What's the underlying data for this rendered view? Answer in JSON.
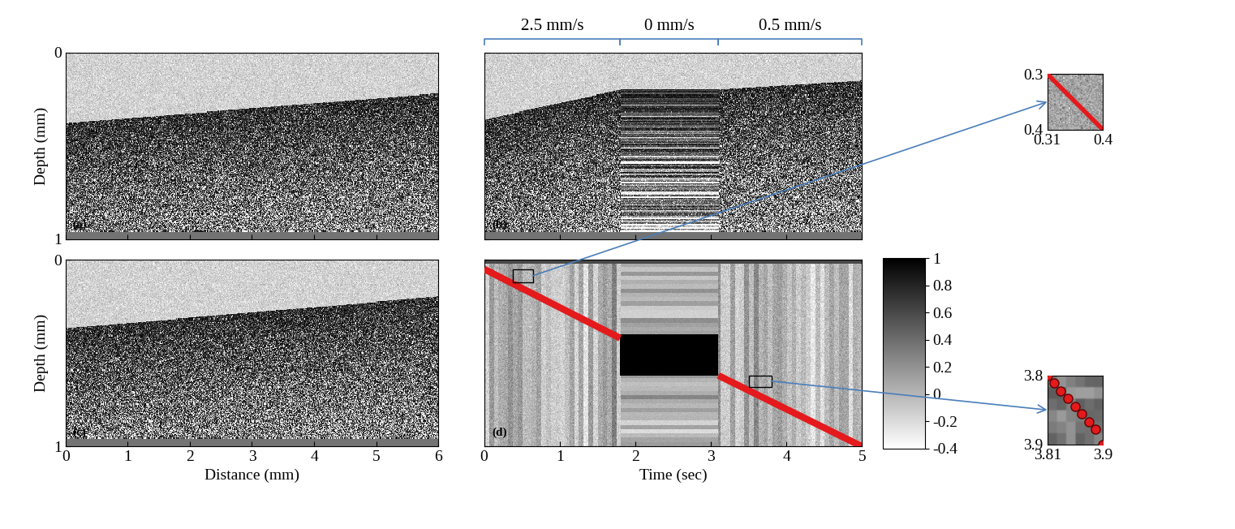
{
  "chart_data": [
    {
      "type": "image",
      "panel": "(a)",
      "ylabel": "Depth (mm)",
      "xlim": [
        0,
        6
      ],
      "ylim": [
        1,
        0
      ],
      "xticks": [
        0,
        1,
        2,
        3,
        4,
        5,
        6
      ],
      "yticks": [
        0,
        1
      ],
      "tick_labels": "y",
      "surface": {
        "x": [
          0,
          6
        ],
        "values": [
          0.38,
          0.22
        ]
      }
    },
    {
      "type": "image",
      "panel": "(b)",
      "xlim": [
        0,
        5
      ],
      "ylim": [
        1,
        0
      ],
      "xticks": [
        0,
        1,
        2,
        3,
        4,
        5
      ],
      "yticks": [
        0,
        1
      ],
      "tick_labels": false,
      "surface": {
        "x": [
          0,
          1.8,
          3.1,
          5
        ],
        "values": [
          0.36,
          0.2,
          0.2,
          0.15
        ]
      },
      "segments": [
        {
          "label": "2.5 mm/s",
          "x": [
            0,
            1.8
          ]
        },
        {
          "label": "0 mm/s",
          "x": [
            1.8,
            3.1
          ]
        },
        {
          "label": "0.5 mm/s",
          "x": [
            3.1,
            5
          ]
        }
      ]
    },
    {
      "type": "image",
      "panel": "(c)",
      "xlabel": "Distance (mm)",
      "ylabel": "Depth (mm)",
      "xlim": [
        0,
        6
      ],
      "ylim": [
        1,
        0
      ],
      "xticks": [
        0,
        1,
        2,
        3,
        4,
        5,
        6
      ],
      "yticks": [
        0,
        1
      ],
      "tick_labels": true,
      "surface": {
        "x": [
          0,
          6
        ],
        "values": [
          0.37,
          0.2
        ]
      }
    },
    {
      "type": "correlation_map",
      "panel": "(d)",
      "xlabel": "Time (sec)",
      "xlim": [
        0,
        5
      ],
      "ylim": [
        1,
        0
      ],
      "xticks": [
        0,
        1,
        2,
        3,
        4,
        5
      ],
      "yticks": [
        0,
        1
      ],
      "tick_labels": "x",
      "series": [
        {
          "x": [
            0,
            1.8,
            2.45,
            3.1,
            5
          ],
          "values": [
            0.05,
            0.42,
            null,
            0.62,
            1.0
          ],
          "color": "#e41a1c",
          "line_style": "solid"
        }
      ],
      "block": {
        "x": [
          1.8,
          3.1
        ],
        "y": [
          0.4,
          0.62
        ],
        "value": 1
      },
      "zoom_boxes": [
        {
          "x": [
            0.38,
            0.65
          ],
          "y": [
            0.05,
            0.12
          ]
        },
        {
          "x": [
            3.5,
            3.8
          ],
          "y": [
            0.62,
            0.68
          ]
        }
      ],
      "colorbar": {
        "range": [
          -0.4,
          1
        ],
        "ticks": [
          -0.4,
          -0.2,
          0,
          0.2,
          0.4,
          0.6,
          0.8,
          1
        ]
      }
    },
    {
      "type": "inset",
      "xlim": [
        0.31,
        0.4
      ],
      "ylim": [
        0.4,
        0.3
      ],
      "xticks": [
        0.31,
        0.4
      ],
      "yticks": [
        0.3,
        0.4
      ],
      "series": [
        {
          "x": [
            0.31,
            0.4
          ],
          "values": [
            0.3,
            0.4
          ],
          "color": "#e41a1c",
          "line_style": "solid"
        }
      ]
    },
    {
      "type": "inset",
      "xlim": [
        3.81,
        3.9
      ],
      "ylim": [
        3.9,
        3.8
      ],
      "xticks": [
        3.81,
        3.9
      ],
      "yticks": [
        3.8,
        3.9
      ],
      "series": [
        {
          "x": [
            3.81,
            3.821,
            3.832,
            3.843,
            3.855,
            3.866,
            3.877,
            3.888,
            3.9
          ],
          "values": [
            3.8,
            3.811,
            3.822,
            3.833,
            3.845,
            3.856,
            3.867,
            3.878,
            3.9
          ],
          "color": "#e41a1c",
          "marker": "o",
          "line_style": "none"
        }
      ]
    }
  ]
}
